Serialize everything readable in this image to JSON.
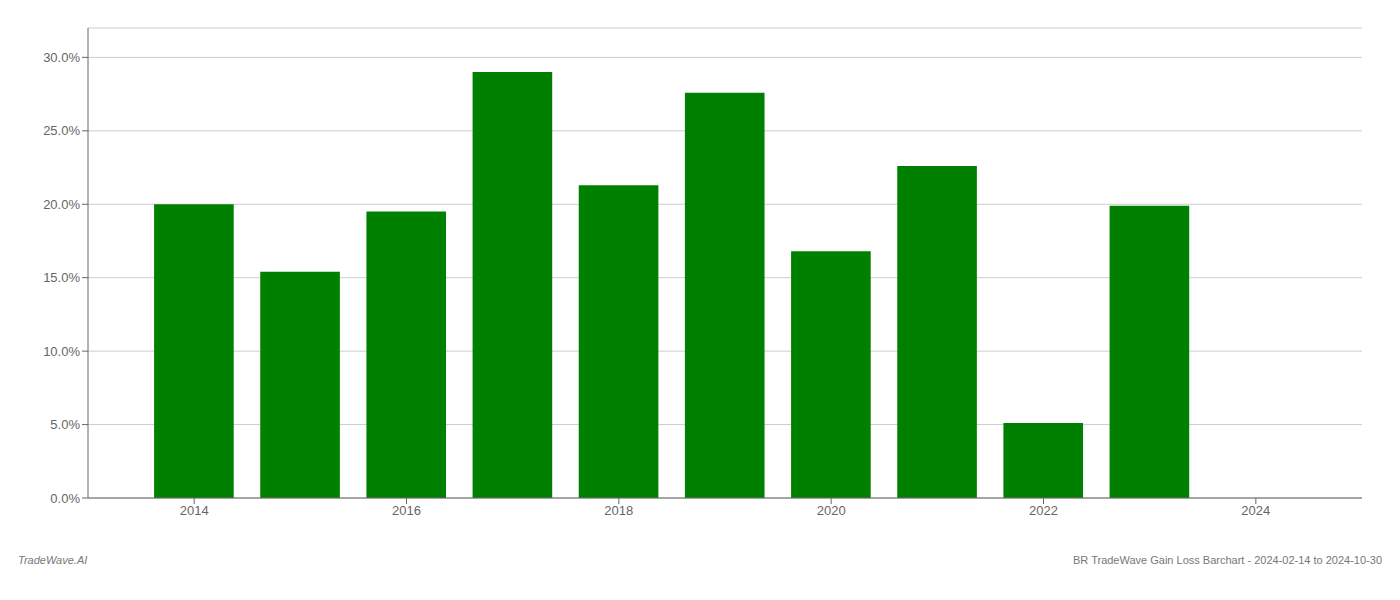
{
  "chart_data": {
    "type": "bar",
    "x": [
      2014,
      2015,
      2016,
      2017,
      2018,
      2019,
      2020,
      2021,
      2022,
      2023
    ],
    "values": [
      0.2,
      0.154,
      0.195,
      0.29,
      0.213,
      0.276,
      0.168,
      0.226,
      0.051,
      0.199
    ],
    "color": "#008000",
    "xlim": [
      2013.0,
      2025.0
    ],
    "xticks": [
      2014,
      2016,
      2018,
      2020,
      2022,
      2024
    ],
    "ylim": [
      0,
      0.32
    ],
    "yticks": [
      {
        "value": 0.0,
        "label": "0.0%"
      },
      {
        "value": 0.05,
        "label": "5.0%"
      },
      {
        "value": 0.1,
        "label": "10.0%"
      },
      {
        "value": 0.15,
        "label": "15.0%"
      },
      {
        "value": 0.2,
        "label": "20.0%"
      },
      {
        "value": 0.25,
        "label": "25.0%"
      },
      {
        "value": 0.3,
        "label": "30.0%"
      }
    ],
    "grid": true,
    "annotations": [
      "TradeWave.AI",
      "BR TradeWave Gain Loss Barchart - 2024-02-14 to 2024-10-30"
    ]
  }
}
